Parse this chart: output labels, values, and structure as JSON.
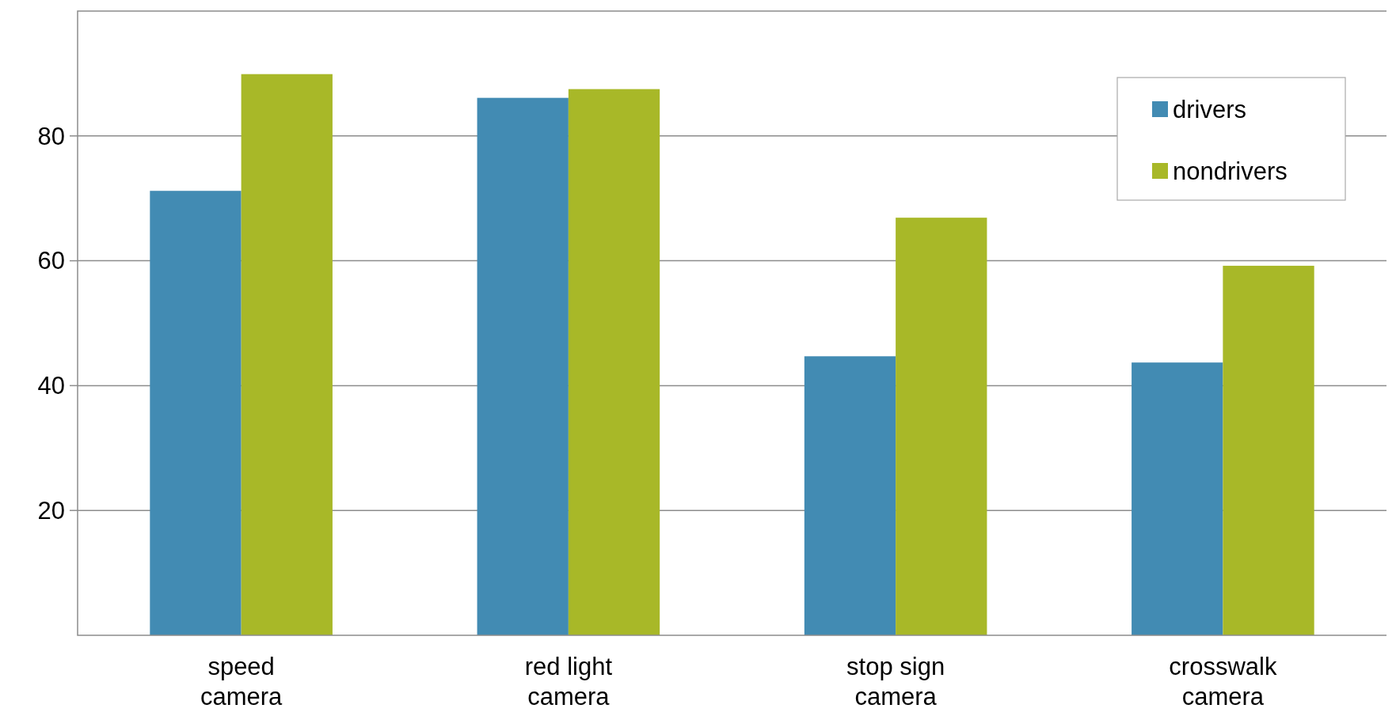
{
  "chart_data": {
    "type": "bar",
    "categories": [
      "speed camera",
      "red light camera",
      "stop sign camera",
      "crosswalk camera"
    ],
    "series": [
      {
        "name": "drivers",
        "color": "#428bb3",
        "values": [
          71.2,
          86.1,
          44.7,
          43.7
        ]
      },
      {
        "name": "nondrivers",
        "color": "#a8b828",
        "values": [
          89.9,
          87.5,
          66.9,
          59.2
        ]
      }
    ],
    "ylim": [
      0,
      100
    ],
    "yticks": [
      20,
      40,
      60,
      80
    ],
    "grid": "y",
    "legend": "top right"
  }
}
